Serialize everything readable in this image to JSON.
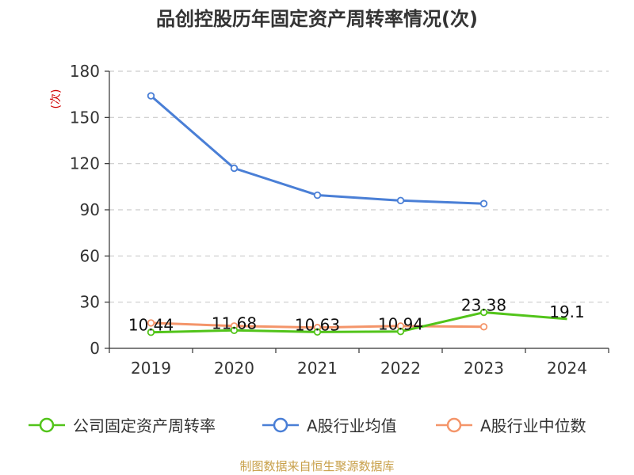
{
  "chart_data": {
    "type": "line",
    "title": "品创控股历年固定资产周转率情况(次)",
    "ylabel": "(次)",
    "xlabel": "",
    "categories": [
      "2019",
      "2020",
      "2021",
      "2022",
      "2023",
      "2024"
    ],
    "ylim": [
      0,
      180
    ],
    "yticks": [
      "0",
      "30",
      "60",
      "90",
      "120",
      "150",
      "180"
    ],
    "grid": true,
    "legend_position": "bottom",
    "series": [
      {
        "name": "公司固定资产周转率",
        "color": "#52c41a",
        "values": [
          10.44,
          11.68,
          10.63,
          10.94,
          23.38,
          19.1
        ],
        "labels": [
          "10.44",
          "11.68",
          "10.63",
          "10.94",
          "23.38",
          "19.1"
        ]
      },
      {
        "name": "A股行业均值",
        "color": "#4a7fd6",
        "values": [
          164,
          117,
          99.5,
          96,
          94,
          null
        ]
      },
      {
        "name": "A股行业中位数",
        "color": "#f4956a",
        "values": [
          16.5,
          14.5,
          13.5,
          14.5,
          14,
          null
        ]
      }
    ],
    "source": "制图数据来自恒生聚源数据库"
  }
}
